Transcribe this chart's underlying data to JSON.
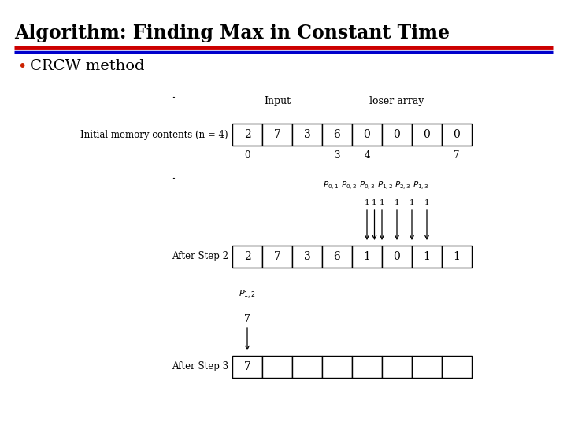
{
  "title": "Algorithm: Finding Max in Constant Time",
  "bullet": "CRCW method",
  "title_fontsize": 17,
  "bullet_fontsize": 14,
  "bg_color": "#ffffff",
  "title_color": "#000000",
  "line1_color": "#cc0000",
  "line2_color": "#0000cc",
  "row1_label": "Initial memory contents (n = 4)",
  "row1_values": [
    "2",
    "7",
    "3",
    "6",
    "0",
    "0",
    "0",
    "0"
  ],
  "row1_label_input": "Input",
  "row1_label_loser": "loser array",
  "row2_label": "After Step 2",
  "row2_values": [
    "2",
    "7",
    "3",
    "6",
    "1",
    "0",
    "1",
    "1"
  ],
  "row3_label": "After Step 3",
  "row3_values": [
    "7",
    "",
    "",
    "",
    "",
    "",
    "",
    ""
  ],
  "p_label_display": [
    "$P_{0,1}$",
    "$P_{0,2}$",
    "$P_{0,3}$",
    "$P_{1,2}$",
    "$P_{2,3}$",
    "$P_{1,3}$"
  ],
  "step3_p_label": "$P_{1,2}$",
  "step3_arrow_value": "7"
}
